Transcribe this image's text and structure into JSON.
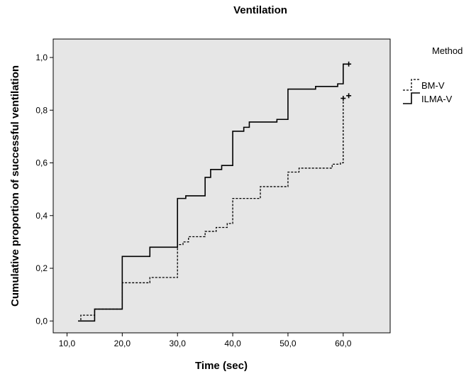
{
  "chart_data": {
    "type": "line",
    "title": "Ventilation",
    "xlabel": "Time (sec)",
    "ylabel": "Cumulative proportion of successful ventilation",
    "xlim": [
      7.5,
      68.5
    ],
    "ylim": [
      -0.045,
      1.07
    ],
    "x_ticks": [
      10,
      20,
      30,
      40,
      50,
      60
    ],
    "x_tick_labels": [
      "10,0",
      "20,0",
      "30,0",
      "40,0",
      "50,0",
      "60,0"
    ],
    "y_ticks": [
      0,
      0.2,
      0.4,
      0.6,
      0.8,
      1.0
    ],
    "y_tick_labels": [
      "0,0",
      "0,2",
      "0,4",
      "0,6",
      "0,8",
      "1,0"
    ],
    "legend": {
      "title": "Method",
      "position": "top-right outside"
    },
    "grid": false,
    "step_function": true,
    "series": [
      {
        "name": "BM-V",
        "line_style": "dashed",
        "color": "#000000",
        "points": [
          [
            12,
            0.0
          ],
          [
            12.5,
            0.022
          ],
          [
            15,
            0.045
          ],
          [
            20,
            0.145
          ],
          [
            25,
            0.165
          ],
          [
            30,
            0.29
          ],
          [
            31,
            0.3
          ],
          [
            32,
            0.32
          ],
          [
            35,
            0.34
          ],
          [
            37,
            0.355
          ],
          [
            39,
            0.37
          ],
          [
            40,
            0.465
          ],
          [
            45,
            0.51
          ],
          [
            50,
            0.565
          ],
          [
            52,
            0.58
          ],
          [
            58,
            0.595
          ],
          [
            59.5,
            0.6
          ],
          [
            60,
            0.845
          ]
        ],
        "censored": [
          [
            60,
            0.845
          ],
          [
            61,
            0.855
          ]
        ]
      },
      {
        "name": "ILMA-V",
        "line_style": "solid",
        "color": "#000000",
        "points": [
          [
            12,
            0.0
          ],
          [
            15,
            0.045
          ],
          [
            20,
            0.245
          ],
          [
            25,
            0.28
          ],
          [
            30,
            0.465
          ],
          [
            31.5,
            0.475
          ],
          [
            35,
            0.545
          ],
          [
            36,
            0.575
          ],
          [
            38,
            0.59
          ],
          [
            40,
            0.72
          ],
          [
            42,
            0.735
          ],
          [
            43,
            0.755
          ],
          [
            48,
            0.765
          ],
          [
            50,
            0.88
          ],
          [
            55,
            0.89
          ],
          [
            59,
            0.9
          ],
          [
            60,
            0.975
          ]
        ],
        "end_x": 61,
        "censored": [
          [
            61,
            0.975
          ]
        ]
      }
    ]
  }
}
